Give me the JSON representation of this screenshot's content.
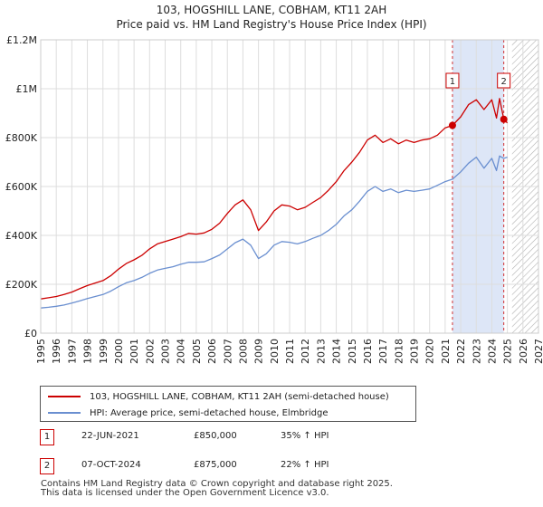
{
  "title_line1": "103, HOGSHILL LANE, COBHAM, KT11 2AH",
  "title_line2": "Price paid vs. HM Land Registry's House Price Index (HPI)",
  "colors": {
    "property": "#cc0000",
    "hpi": "#6a8fd0",
    "shade": "#dde6f7",
    "hatch": "#aaaaaa"
  },
  "chart_data": {
    "type": "line",
    "title": "103, HOGSHILL LANE, COBHAM, KT11 2AH — Price paid vs. HM Land Registry's House Price Index (HPI)",
    "xlim": [
      1995,
      2027
    ],
    "ylim": [
      0,
      1200000
    ],
    "x_ticks": [
      1995,
      1996,
      1997,
      1998,
      1999,
      2000,
      2001,
      2002,
      2003,
      2004,
      2005,
      2006,
      2007,
      2008,
      2009,
      2010,
      2011,
      2012,
      2013,
      2014,
      2015,
      2016,
      2017,
      2018,
      2019,
      2020,
      2021,
      2022,
      2023,
      2024,
      2025,
      2026,
      2027
    ],
    "y_ticks": [
      {
        "value": 0,
        "label": "£0"
      },
      {
        "value": 200000,
        "label": "£200K"
      },
      {
        "value": 400000,
        "label": "£400K"
      },
      {
        "value": 600000,
        "label": "£600K"
      },
      {
        "value": 800000,
        "label": "£800K"
      },
      {
        "value": 1000000,
        "label": "£1M"
      },
      {
        "value": 1200000,
        "label": "£1.2M"
      }
    ],
    "grid": true,
    "data_end": 2025.3,
    "series": [
      {
        "name": "103, HOGSHILL LANE, COBHAM, KT11 2AH (semi-detached house)",
        "color": "#cc0000",
        "points": [
          [
            1995.0,
            140000
          ],
          [
            1995.5,
            145000
          ],
          [
            1996.0,
            150000
          ],
          [
            1996.5,
            158000
          ],
          [
            1997.0,
            168000
          ],
          [
            1997.5,
            182000
          ],
          [
            1998.0,
            195000
          ],
          [
            1998.5,
            205000
          ],
          [
            1999.0,
            215000
          ],
          [
            1999.5,
            235000
          ],
          [
            2000.0,
            262000
          ],
          [
            2000.5,
            285000
          ],
          [
            2001.0,
            300000
          ],
          [
            2001.5,
            318000
          ],
          [
            2002.0,
            345000
          ],
          [
            2002.5,
            365000
          ],
          [
            2003.0,
            375000
          ],
          [
            2003.5,
            385000
          ],
          [
            2004.0,
            395000
          ],
          [
            2004.5,
            408000
          ],
          [
            2005.0,
            405000
          ],
          [
            2005.5,
            410000
          ],
          [
            2006.0,
            425000
          ],
          [
            2006.5,
            450000
          ],
          [
            2007.0,
            490000
          ],
          [
            2007.5,
            525000
          ],
          [
            2008.0,
            545000
          ],
          [
            2008.5,
            505000
          ],
          [
            2009.0,
            420000
          ],
          [
            2009.5,
            455000
          ],
          [
            2010.0,
            500000
          ],
          [
            2010.5,
            525000
          ],
          [
            2011.0,
            520000
          ],
          [
            2011.5,
            505000
          ],
          [
            2012.0,
            515000
          ],
          [
            2012.5,
            535000
          ],
          [
            2013.0,
            555000
          ],
          [
            2013.5,
            585000
          ],
          [
            2014.0,
            620000
          ],
          [
            2014.5,
            665000
          ],
          [
            2015.0,
            700000
          ],
          [
            2015.5,
            740000
          ],
          [
            2016.0,
            790000
          ],
          [
            2016.5,
            810000
          ],
          [
            2017.0,
            780000
          ],
          [
            2017.5,
            795000
          ],
          [
            2018.0,
            775000
          ],
          [
            2018.5,
            790000
          ],
          [
            2019.0,
            780000
          ],
          [
            2019.5,
            790000
          ],
          [
            2020.0,
            795000
          ],
          [
            2020.5,
            810000
          ],
          [
            2021.0,
            840000
          ],
          [
            2021.47,
            850000
          ],
          [
            2022.0,
            885000
          ],
          [
            2022.5,
            935000
          ],
          [
            2023.0,
            955000
          ],
          [
            2023.5,
            915000
          ],
          [
            2024.0,
            955000
          ],
          [
            2024.3,
            880000
          ],
          [
            2024.5,
            960000
          ],
          [
            2024.77,
            875000
          ],
          [
            2025.0,
            860000
          ]
        ]
      },
      {
        "name": "HPI: Average price, semi-detached house, Elmbridge",
        "color": "#6a8fd0",
        "points": [
          [
            1995.0,
            103000
          ],
          [
            1995.5,
            106000
          ],
          [
            1996.0,
            110000
          ],
          [
            1996.5,
            115000
          ],
          [
            1997.0,
            123000
          ],
          [
            1997.5,
            132000
          ],
          [
            1998.0,
            142000
          ],
          [
            1998.5,
            150000
          ],
          [
            1999.0,
            158000
          ],
          [
            1999.5,
            172000
          ],
          [
            2000.0,
            190000
          ],
          [
            2000.5,
            206000
          ],
          [
            2001.0,
            215000
          ],
          [
            2001.5,
            228000
          ],
          [
            2002.0,
            245000
          ],
          [
            2002.5,
            258000
          ],
          [
            2003.0,
            265000
          ],
          [
            2003.5,
            272000
          ],
          [
            2004.0,
            282000
          ],
          [
            2004.5,
            290000
          ],
          [
            2005.0,
            290000
          ],
          [
            2005.5,
            292000
          ],
          [
            2006.0,
            305000
          ],
          [
            2006.5,
            320000
          ],
          [
            2007.0,
            345000
          ],
          [
            2007.5,
            370000
          ],
          [
            2008.0,
            385000
          ],
          [
            2008.5,
            360000
          ],
          [
            2009.0,
            305000
          ],
          [
            2009.5,
            325000
          ],
          [
            2010.0,
            360000
          ],
          [
            2010.5,
            375000
          ],
          [
            2011.0,
            372000
          ],
          [
            2011.5,
            365000
          ],
          [
            2012.0,
            375000
          ],
          [
            2012.5,
            388000
          ],
          [
            2013.0,
            400000
          ],
          [
            2013.5,
            420000
          ],
          [
            2014.0,
            445000
          ],
          [
            2014.5,
            480000
          ],
          [
            2015.0,
            505000
          ],
          [
            2015.5,
            540000
          ],
          [
            2016.0,
            580000
          ],
          [
            2016.5,
            600000
          ],
          [
            2017.0,
            580000
          ],
          [
            2017.5,
            590000
          ],
          [
            2018.0,
            575000
          ],
          [
            2018.5,
            585000
          ],
          [
            2019.0,
            580000
          ],
          [
            2019.5,
            585000
          ],
          [
            2020.0,
            590000
          ],
          [
            2020.5,
            605000
          ],
          [
            2021.0,
            620000
          ],
          [
            2021.47,
            630000
          ],
          [
            2022.0,
            660000
          ],
          [
            2022.5,
            695000
          ],
          [
            2023.0,
            720000
          ],
          [
            2023.5,
            675000
          ],
          [
            2024.0,
            715000
          ],
          [
            2024.3,
            665000
          ],
          [
            2024.5,
            725000
          ],
          [
            2024.77,
            715000
          ],
          [
            2025.0,
            720000
          ]
        ]
      }
    ],
    "annotations": [
      {
        "label": "1",
        "x": 2021.47,
        "value": 850000
      },
      {
        "label": "2",
        "x": 2024.77,
        "value": 875000
      }
    ],
    "shaded_range": [
      2021.47,
      2024.77
    ],
    "legend_position": "below"
  },
  "legend": {
    "items": [
      {
        "label": "103, HOGSHILL LANE, COBHAM, KT11 2AH (semi-detached house)"
      },
      {
        "label": "HPI: Average price, semi-detached house, Elmbridge"
      }
    ]
  },
  "transactions": [
    {
      "num": "1",
      "date": "22-JUN-2021",
      "price": "£850,000",
      "hpi": "35% ↑ HPI"
    },
    {
      "num": "2",
      "date": "07-OCT-2024",
      "price": "£875,000",
      "hpi": "22% ↑ HPI"
    }
  ],
  "footer": {
    "line1": "Contains HM Land Registry data © Crown copyright and database right 2025.",
    "line2": "This data is licensed under the Open Government Licence v3.0."
  }
}
